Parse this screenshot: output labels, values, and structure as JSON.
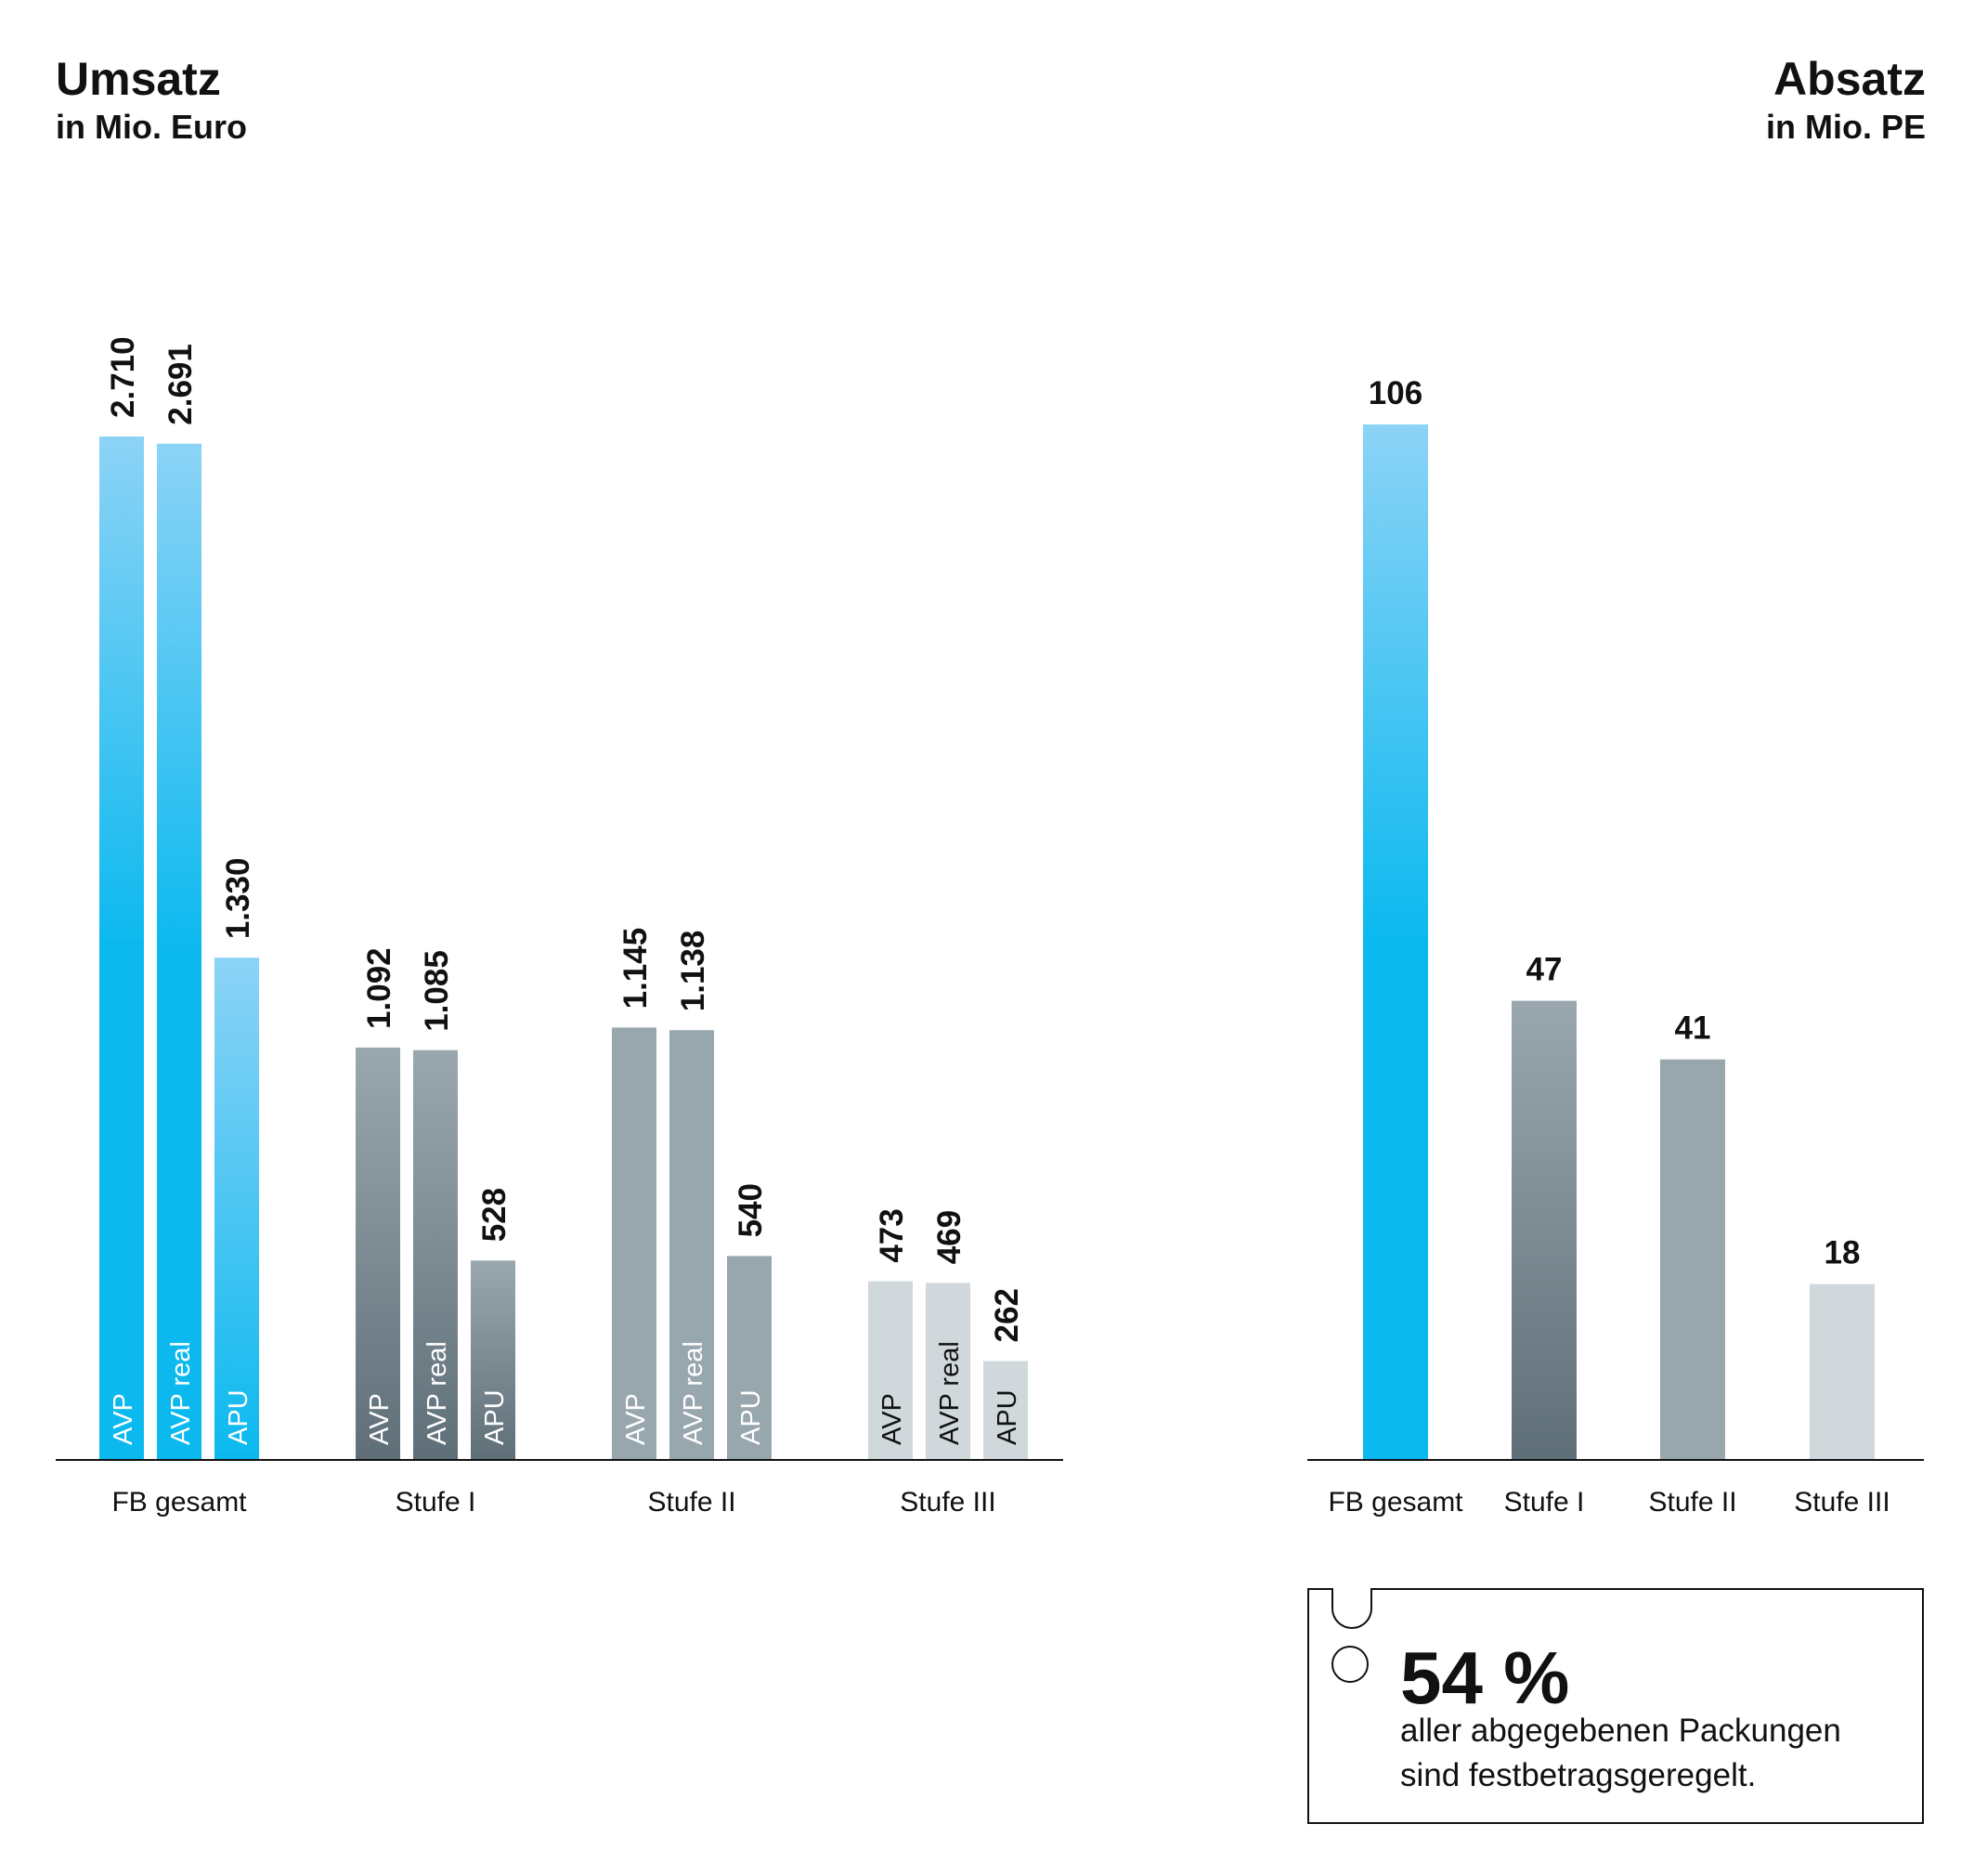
{
  "chart_data": [
    {
      "type": "bar",
      "title": "Umsatz",
      "subtitle": "in Mio. Euro",
      "categories": [
        "FB gesamt",
        "Stufe I",
        "Stufe II",
        "Stufe III"
      ],
      "series": [
        {
          "name": "AVP",
          "values": [
            2710,
            1092,
            1145,
            473
          ]
        },
        {
          "name": "AVP real",
          "values": [
            2691,
            1085,
            1138,
            469
          ]
        },
        {
          "name": "APU",
          "values": [
            1330,
            528,
            540,
            262
          ]
        }
      ],
      "data_labels": [
        [
          "2.710",
          "2.691",
          "1.330"
        ],
        [
          "1.092",
          "1.085",
          "528"
        ],
        [
          "1.145",
          "1.138",
          "540"
        ],
        [
          "473",
          "469",
          "262"
        ]
      ],
      "ylim": [
        0,
        2710
      ],
      "grid": false
    },
    {
      "type": "bar",
      "title": "Absatz",
      "subtitle": "in Mio. PE",
      "categories": [
        "FB gesamt",
        "Stufe I",
        "Stufe II",
        "Stufe III"
      ],
      "values": [
        106,
        47,
        41,
        18
      ],
      "data_labels": [
        "106",
        "47",
        "41",
        "18"
      ],
      "ylim": [
        0,
        106
      ],
      "grid": false
    }
  ],
  "colors": {
    "fb_dark": "#0bb9ef",
    "fb_light": "#8cd3f6",
    "stufe1_dark": "#5f6f78",
    "stufe1_light": "#9aa7ae",
    "stufe2": "#98a6ae",
    "stufe3": "#d0d8dc",
    "axis": "#111111"
  },
  "callout": {
    "percent": "54 %",
    "text_line1": "aller abgegebenen Packungen",
    "text_line2": "sind festbetragsgeregelt."
  }
}
